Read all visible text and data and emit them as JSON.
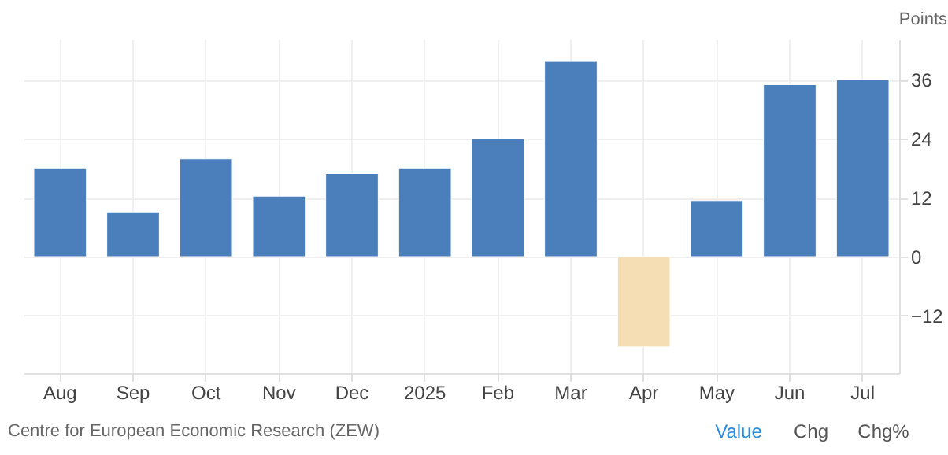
{
  "chart_data": {
    "type": "bar",
    "ylabel": "Points",
    "categories": [
      "Aug",
      "Sep",
      "Oct",
      "Nov",
      "Dec",
      "2025",
      "Feb",
      "Mar",
      "Apr",
      "May",
      "Jun",
      "Jul"
    ],
    "values": [
      17.9,
      9.1,
      19.9,
      12.3,
      16.9,
      17.9,
      24.0,
      39.7,
      -18.4,
      11.4,
      35.0,
      36.0
    ],
    "colors": [
      "#4a7fbc",
      "#4a7fbc",
      "#4a7fbc",
      "#4a7fbc",
      "#4a7fbc",
      "#4a7fbc",
      "#4a7fbc",
      "#4a7fbc",
      "#f5deb3",
      "#4a7fbc",
      "#4a7fbc",
      "#4a7fbc"
    ],
    "ylim": [
      -23.7,
      44.2
    ],
    "yticks": [
      -12,
      0,
      12,
      24,
      36
    ],
    "grid": true,
    "annotations": [
      "Centre for European Economic Research (ZEW)",
      "Value",
      "Chg",
      "Chg%"
    ]
  }
}
